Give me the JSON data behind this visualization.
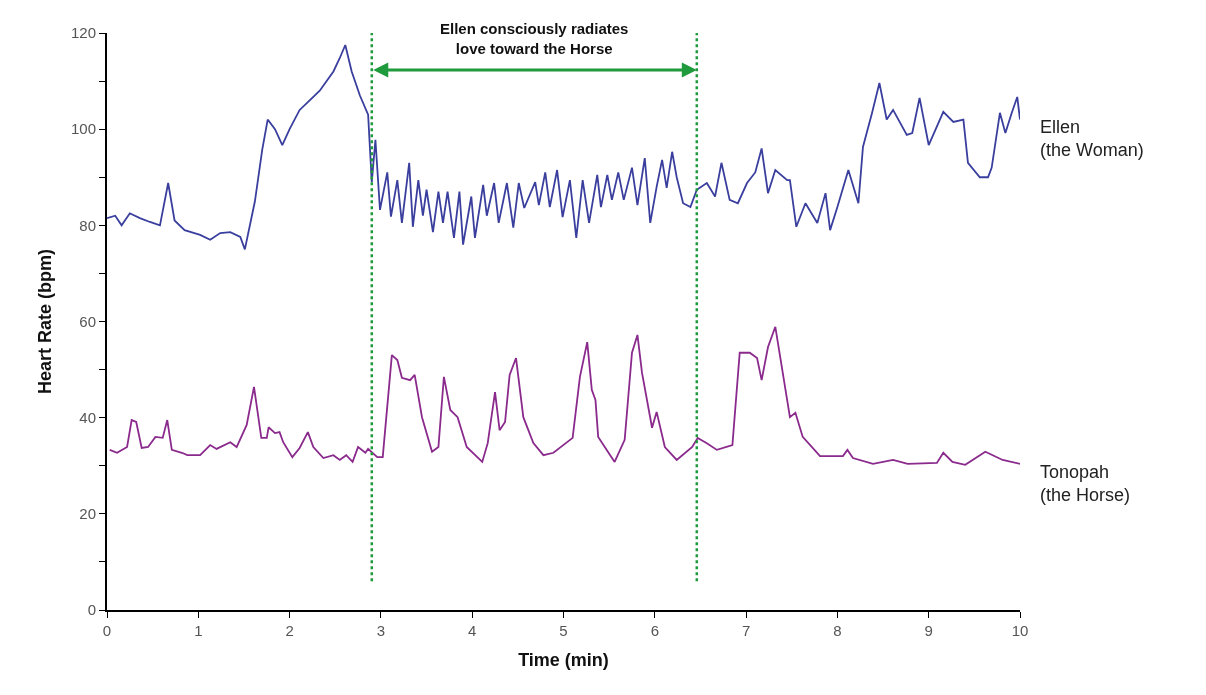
{
  "chart_data": {
    "type": "line",
    "xlabel": "Time (min)",
    "ylabel": "Heart Rate (bpm)",
    "annotations": [
      "Ellen consciously radiates\nlove toward the Horse"
    ],
    "xlim": [
      0,
      10
    ],
    "xticks": [
      0,
      1,
      2,
      3,
      4,
      5,
      6,
      7,
      8,
      9,
      10
    ],
    "ylim": [
      0,
      120
    ],
    "yticks": [
      0,
      {
        "value": 10,
        "label": null
      },
      20,
      {
        "value": 30,
        "label": null
      },
      40,
      {
        "value": 50,
        "label": null
      },
      60,
      {
        "value": 70,
        "label": null
      },
      80,
      {
        "value": 90,
        "label": null
      },
      100,
      {
        "value": 110,
        "label": null
      },
      120
    ],
    "legend": false,
    "marker": "none",
    "line_style": "solid",
    "ref_lines": [
      {
        "axis": "x",
        "value": 2.9,
        "label": null,
        "color": "#1f9a3c",
        "line_style": "dotted"
      },
      {
        "axis": "x",
        "value": 6.46,
        "label": null,
        "color": "#1f9a3c",
        "line_style": "dotted"
      }
    ],
    "series": [
      {
        "name": "Ellen\n(the Woman)",
        "color": "#3a3f9e",
        "x": [
          0,
          0.09,
          0.16,
          0.25,
          0.36,
          0.47,
          0.58,
          0.67,
          0.74,
          0.85,
          1.02,
          1.13,
          1.24,
          1.35,
          1.46,
          1.51,
          1.62,
          1.7,
          1.76,
          1.84,
          1.92,
          2.0,
          2.11,
          2.22,
          2.33,
          2.48,
          2.55,
          2.61,
          2.68,
          2.77,
          2.86,
          2.9,
          2.94,
          2.99,
          3.07,
          3.11,
          3.18,
          3.23,
          3.31,
          3.35,
          3.41,
          3.46,
          3.5,
          3.57,
          3.63,
          3.68,
          3.73,
          3.8,
          3.86,
          3.9,
          3.99,
          4.03,
          4.12,
          4.16,
          4.24,
          4.29,
          4.38,
          4.45,
          4.51,
          4.57,
          4.69,
          4.73,
          4.8,
          4.85,
          4.93,
          4.99,
          5.07,
          5.14,
          5.21,
          5.28,
          5.37,
          5.41,
          5.48,
          5.53,
          5.6,
          5.66,
          5.75,
          5.81,
          5.89,
          5.95,
          6.02,
          6.08,
          6.13,
          6.19,
          6.24,
          6.31,
          6.39,
          6.46,
          6.57,
          6.66,
          6.73,
          6.82,
          6.91,
          7.01,
          7.1,
          7.17,
          7.24,
          7.32,
          7.45,
          7.48,
          7.55,
          7.65,
          7.78,
          7.87,
          7.92,
          8.0,
          8.12,
          8.23,
          8.28,
          8.38,
          8.46,
          8.54,
          8.61,
          8.76,
          8.82,
          8.9,
          9.0,
          9.16,
          9.27,
          9.38,
          9.43,
          9.56,
          9.65,
          9.69,
          9.78,
          9.84,
          9.91,
          9.97,
          10
        ],
        "values": [
          81.5,
          82,
          80,
          82.5,
          81.5,
          80.7,
          80,
          88.8,
          81,
          79,
          78,
          77,
          78.4,
          78.6,
          77.6,
          75,
          85,
          95.7,
          102,
          100,
          96.7,
          100,
          104,
          106,
          108,
          112,
          114.8,
          117.5,
          112,
          107,
          103,
          89,
          97.8,
          83.2,
          91,
          81.8,
          89.4,
          80.5,
          93,
          79.7,
          89.4,
          82,
          87.4,
          78.6,
          87,
          80.5,
          87,
          77.4,
          87,
          76,
          86,
          77.4,
          88.4,
          82,
          88.8,
          80.5,
          88.8,
          79.5,
          88.8,
          83.6,
          89,
          84.2,
          91,
          83.8,
          91.5,
          81.7,
          89.4,
          77.4,
          89.4,
          80.5,
          90.5,
          83.8,
          90.5,
          85.3,
          91,
          85.3,
          92,
          84.2,
          94,
          80.5,
          88,
          93.6,
          87.8,
          95.3,
          90,
          84.6,
          83.8,
          87.4,
          88.8,
          86,
          93,
          85.3,
          84.6,
          88.8,
          91,
          96,
          86.7,
          91.5,
          89.4,
          89.4,
          79.7,
          84.6,
          80.5,
          86.7,
          79,
          83.8,
          91.5,
          84.6,
          96.3,
          103.4,
          109.6,
          102,
          104,
          98.8,
          99.2,
          106.5,
          96.7,
          103.6,
          101.5,
          102,
          93,
          90,
          90,
          92,
          103.4,
          99.2,
          103.4,
          106.7,
          102
        ]
      },
      {
        "name": "Tonopah\n(the Horse)",
        "color": "#8a2a8c",
        "x": [
          0.03,
          0.11,
          0.22,
          0.27,
          0.32,
          0.38,
          0.45,
          0.53,
          0.61,
          0.66,
          0.71,
          0.82,
          0.88,
          1.02,
          1.13,
          1.2,
          1.35,
          1.42,
          1.53,
          1.61,
          1.69,
          1.75,
          1.77,
          1.84,
          1.89,
          1.93,
          2.03,
          2.11,
          2.2,
          2.26,
          2.37,
          2.48,
          2.55,
          2.62,
          2.69,
          2.75,
          2.83,
          2.86,
          2.96,
          3.02,
          3.12,
          3.18,
          3.23,
          3.32,
          3.37,
          3.45,
          3.56,
          3.63,
          3.69,
          3.76,
          3.84,
          3.94,
          4.11,
          4.17,
          4.25,
          4.3,
          4.36,
          4.41,
          4.48,
          4.56,
          4.67,
          4.78,
          4.89,
          5.1,
          5.18,
          5.26,
          5.31,
          5.35,
          5.38,
          5.56,
          5.67,
          5.75,
          5.81,
          5.86,
          5.97,
          6.02,
          6.11,
          6.24,
          6.41,
          6.47,
          6.57,
          6.68,
          6.85,
          6.93,
          7.04,
          7.12,
          7.17,
          7.24,
          7.32,
          7.48,
          7.54,
          7.62,
          7.81,
          8.06,
          8.11,
          8.17,
          8.39,
          8.61,
          8.77,
          9.09,
          9.16,
          9.26,
          9.4,
          9.62,
          9.81,
          10
        ],
        "values": [
          33.3,
          32.7,
          33.9,
          39.5,
          39.1,
          33.7,
          33.9,
          36,
          35.8,
          39.5,
          33.3,
          32.7,
          32.2,
          32.2,
          34.3,
          33.5,
          34.9,
          33.9,
          38.5,
          46.4,
          35.8,
          35.8,
          38,
          36.8,
          37,
          34.9,
          31.8,
          33.7,
          37,
          33.9,
          31.6,
          32.2,
          31.2,
          32.2,
          30.8,
          33.9,
          32.7,
          33.5,
          31.8,
          31.8,
          53,
          52,
          48.3,
          47.8,
          48.9,
          40.1,
          32.9,
          33.9,
          48.5,
          41.6,
          40.1,
          33.9,
          30.8,
          34.7,
          45.3,
          37.4,
          39.1,
          48.9,
          52.4,
          40.1,
          34.7,
          32.2,
          32.7,
          35.8,
          48.5,
          55.7,
          45.8,
          43.7,
          36,
          30.8,
          35.4,
          53.5,
          57.2,
          49.3,
          37.9,
          41.2,
          33.9,
          31.2,
          33.9,
          35.8,
          34.7,
          33.3,
          34.3,
          53.5,
          53.5,
          52.4,
          47.8,
          54.7,
          58.9,
          40.1,
          41,
          36,
          32,
          32,
          33.3,
          31.6,
          30.4,
          31.2,
          30.4,
          30.6,
          32.7,
          30.8,
          30.2,
          32.9,
          31.2,
          30.4
        ]
      }
    ]
  }
}
